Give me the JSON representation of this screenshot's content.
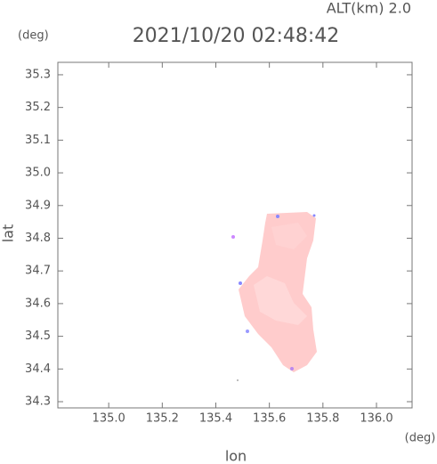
{
  "chart_data": {
    "type": "map",
    "title": "2021/10/20 02:48:42",
    "subtitle": "ALT(km) 2.0",
    "y_unit": "(deg)",
    "x_unit": "(deg)",
    "x_label": "lon",
    "y_label": "lat",
    "xlim": [
      134.81,
      136.133
    ],
    "ylim": [
      34.281,
      35.338
    ],
    "xticks": [
      {
        "value": 135,
        "label": "135.0"
      },
      {
        "value": 135.2,
        "label": "135.2"
      },
      {
        "value": 135.4,
        "label": "135.4"
      },
      {
        "value": 135.6,
        "label": "135.6"
      },
      {
        "value": 135.8,
        "label": "135.8"
      },
      {
        "value": 136,
        "label": "136.0"
      }
    ],
    "yticks": [
      {
        "value": 34.3,
        "label": "34.3"
      },
      {
        "value": 34.4,
        "label": "34.4"
      },
      {
        "value": 34.5,
        "label": "34.5"
      },
      {
        "value": 34.6,
        "label": "34.6"
      },
      {
        "value": 34.7,
        "label": "34.7"
      },
      {
        "value": 34.8,
        "label": "34.8"
      },
      {
        "value": 34.9,
        "label": "34.9"
      },
      {
        "value": 35,
        "label": "35.0"
      },
      {
        "value": 35.1,
        "label": "35.1"
      },
      {
        "value": 35.2,
        "label": "35.2"
      },
      {
        "value": 35.3,
        "label": "35.3"
      }
    ]
  }
}
